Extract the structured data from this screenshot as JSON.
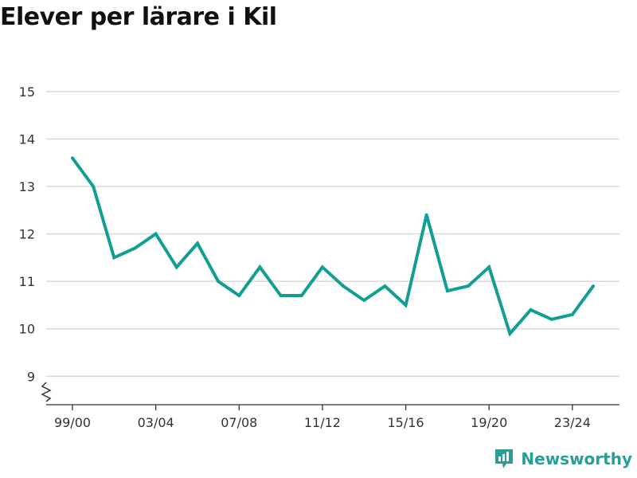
{
  "title": "Elever per lärare i Kil",
  "brand": {
    "name": "Newsworthy",
    "icon": "newsworthy-logo-icon",
    "color": "#2a9d95"
  },
  "colors": {
    "line": "#129e95",
    "grid": "#d9d9d9",
    "axis": "#333333",
    "text": "#333333"
  },
  "chart_data": {
    "type": "line",
    "title": "Elever per lärare i Kil",
    "xlabel": "",
    "ylabel": "",
    "x": [
      "99/00",
      "00/01",
      "01/02",
      "02/03",
      "03/04",
      "04/05",
      "05/06",
      "06/07",
      "07/08",
      "08/09",
      "09/10",
      "10/11",
      "11/12",
      "12/13",
      "13/14",
      "14/15",
      "15/16",
      "16/17",
      "17/18",
      "18/19",
      "19/20",
      "20/21",
      "21/22",
      "22/23",
      "23/24",
      "24/25"
    ],
    "x_tick_labels": [
      "99/00",
      "03/04",
      "07/08",
      "11/12",
      "15/16",
      "19/20",
      "23/24"
    ],
    "series": [
      {
        "values": [
          13.6,
          13.0,
          11.5,
          11.7,
          12.0,
          11.3,
          11.8,
          11.0,
          10.7,
          11.3,
          10.7,
          10.7,
          11.3,
          10.9,
          10.6,
          10.9,
          10.5,
          12.4,
          10.8,
          10.9,
          11.3,
          9.9,
          10.4,
          10.2,
          10.3,
          10.9
        ]
      }
    ],
    "yticks": [
      9,
      10,
      11,
      12,
      13,
      14,
      15
    ],
    "ylim": [
      8.4,
      15
    ],
    "y_axis_break": true,
    "grid": true,
    "legend": "none"
  }
}
